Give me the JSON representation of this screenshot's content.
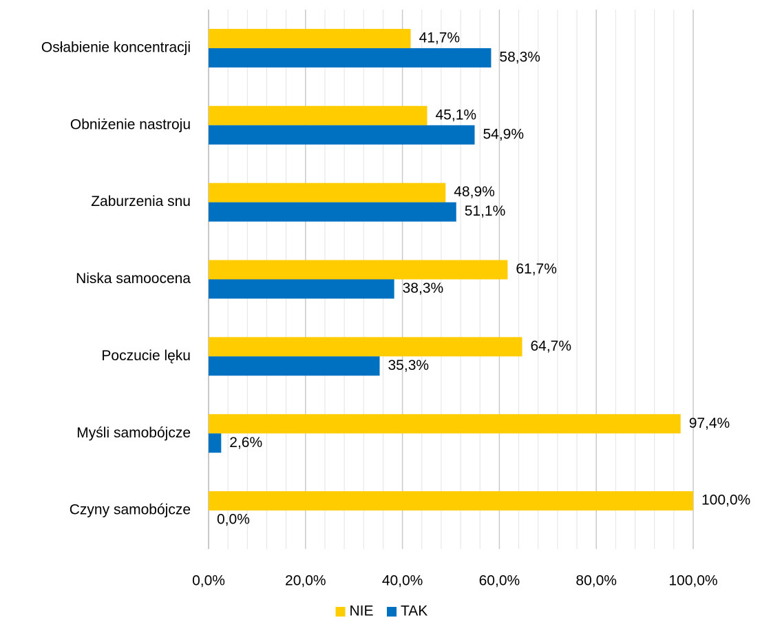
{
  "chart_data": {
    "type": "bar",
    "orientation": "horizontal",
    "title": "",
    "xlabel": "",
    "ylabel": "",
    "categories": [
      "Osłabienie koncentracji",
      "Obniżenie nastroju",
      "Zaburzenia snu",
      "Niska samoocena",
      "Poczucie lęku",
      "Myśli samobójcze",
      "Czyny samobójcze"
    ],
    "series": [
      {
        "name": "NIE",
        "color": "#FFCC00",
        "values": [
          41.7,
          45.1,
          48.9,
          61.7,
          64.7,
          97.4,
          100.0
        ],
        "labels": [
          "41,7%",
          "45,1%",
          "48,9%",
          "61,7%",
          "64,7%",
          "97,4%",
          "100,0%"
        ]
      },
      {
        "name": "TAK",
        "color": "#0070C0",
        "values": [
          58.3,
          54.9,
          51.1,
          38.3,
          35.3,
          2.6,
          0.0
        ],
        "labels": [
          "58,3%",
          "54,9%",
          "51,1%",
          "38,3%",
          "35,3%",
          "2,6%",
          "0,0%"
        ]
      }
    ],
    "xlim": [
      0,
      100
    ],
    "x_ticks": [
      0,
      20,
      40,
      60,
      80,
      100
    ],
    "x_tick_labels": [
      "0,0%",
      "20,0%",
      "40,0%",
      "60,0%",
      "80,0%",
      "100,0%"
    ],
    "minor_tick_step": 4,
    "grid": true,
    "legend_position": "bottom"
  }
}
